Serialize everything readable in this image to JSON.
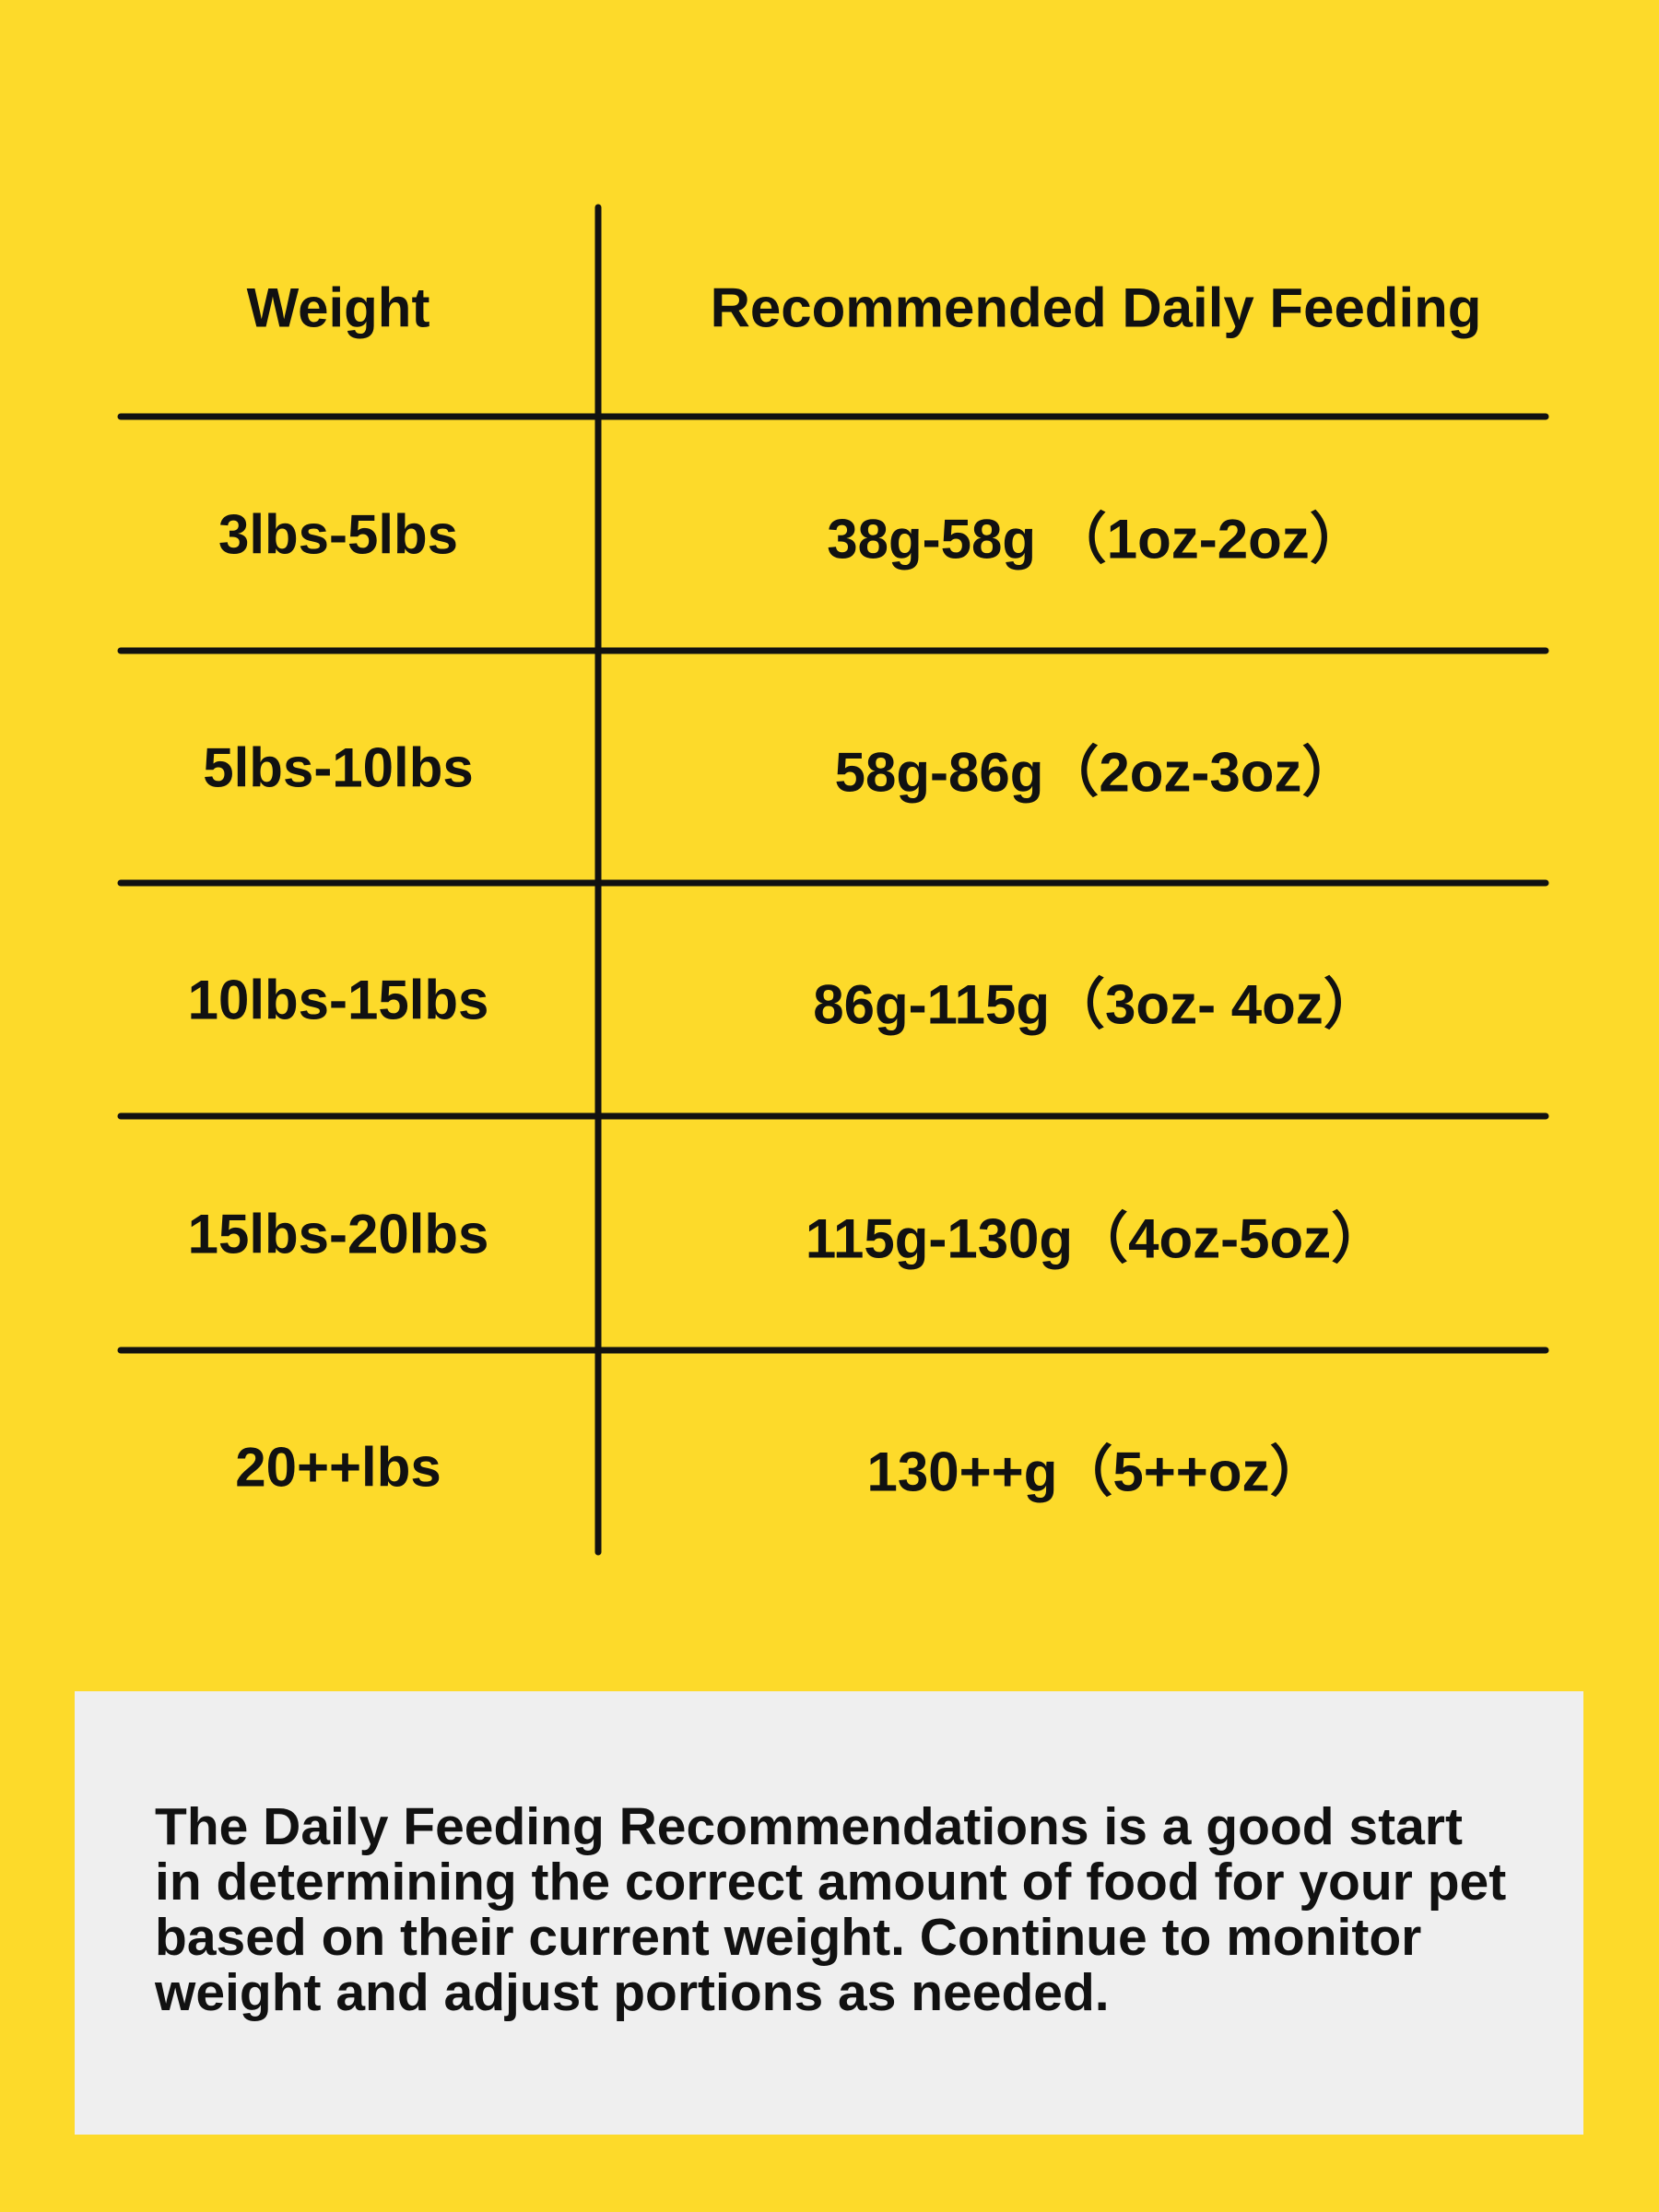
{
  "table": {
    "header": [
      "Weight",
      "Recommended Daily Feeding"
    ],
    "rows": [
      [
        "3lbs-5lbs",
        "38g-58g （1oz-2oz）"
      ],
      [
        "5lbs-10lbs",
        "58g-86g（2oz-3oz）"
      ],
      [
        "10lbs-15lbs",
        "86g-115g（3oz- 4oz）"
      ],
      [
        "15lbs-20lbs",
        "115g-130g（4oz-5oz）"
      ],
      [
        "20++lbs",
        "130++g（5++oz）"
      ]
    ]
  },
  "note": {
    "lines": [
      "The Daily Feeding Recommendations is a good start",
      "in determining the correct amount of food for your pet",
      "based on their current weight. Continue to monitor",
      "weight and adjust portions as needed."
    ]
  }
}
